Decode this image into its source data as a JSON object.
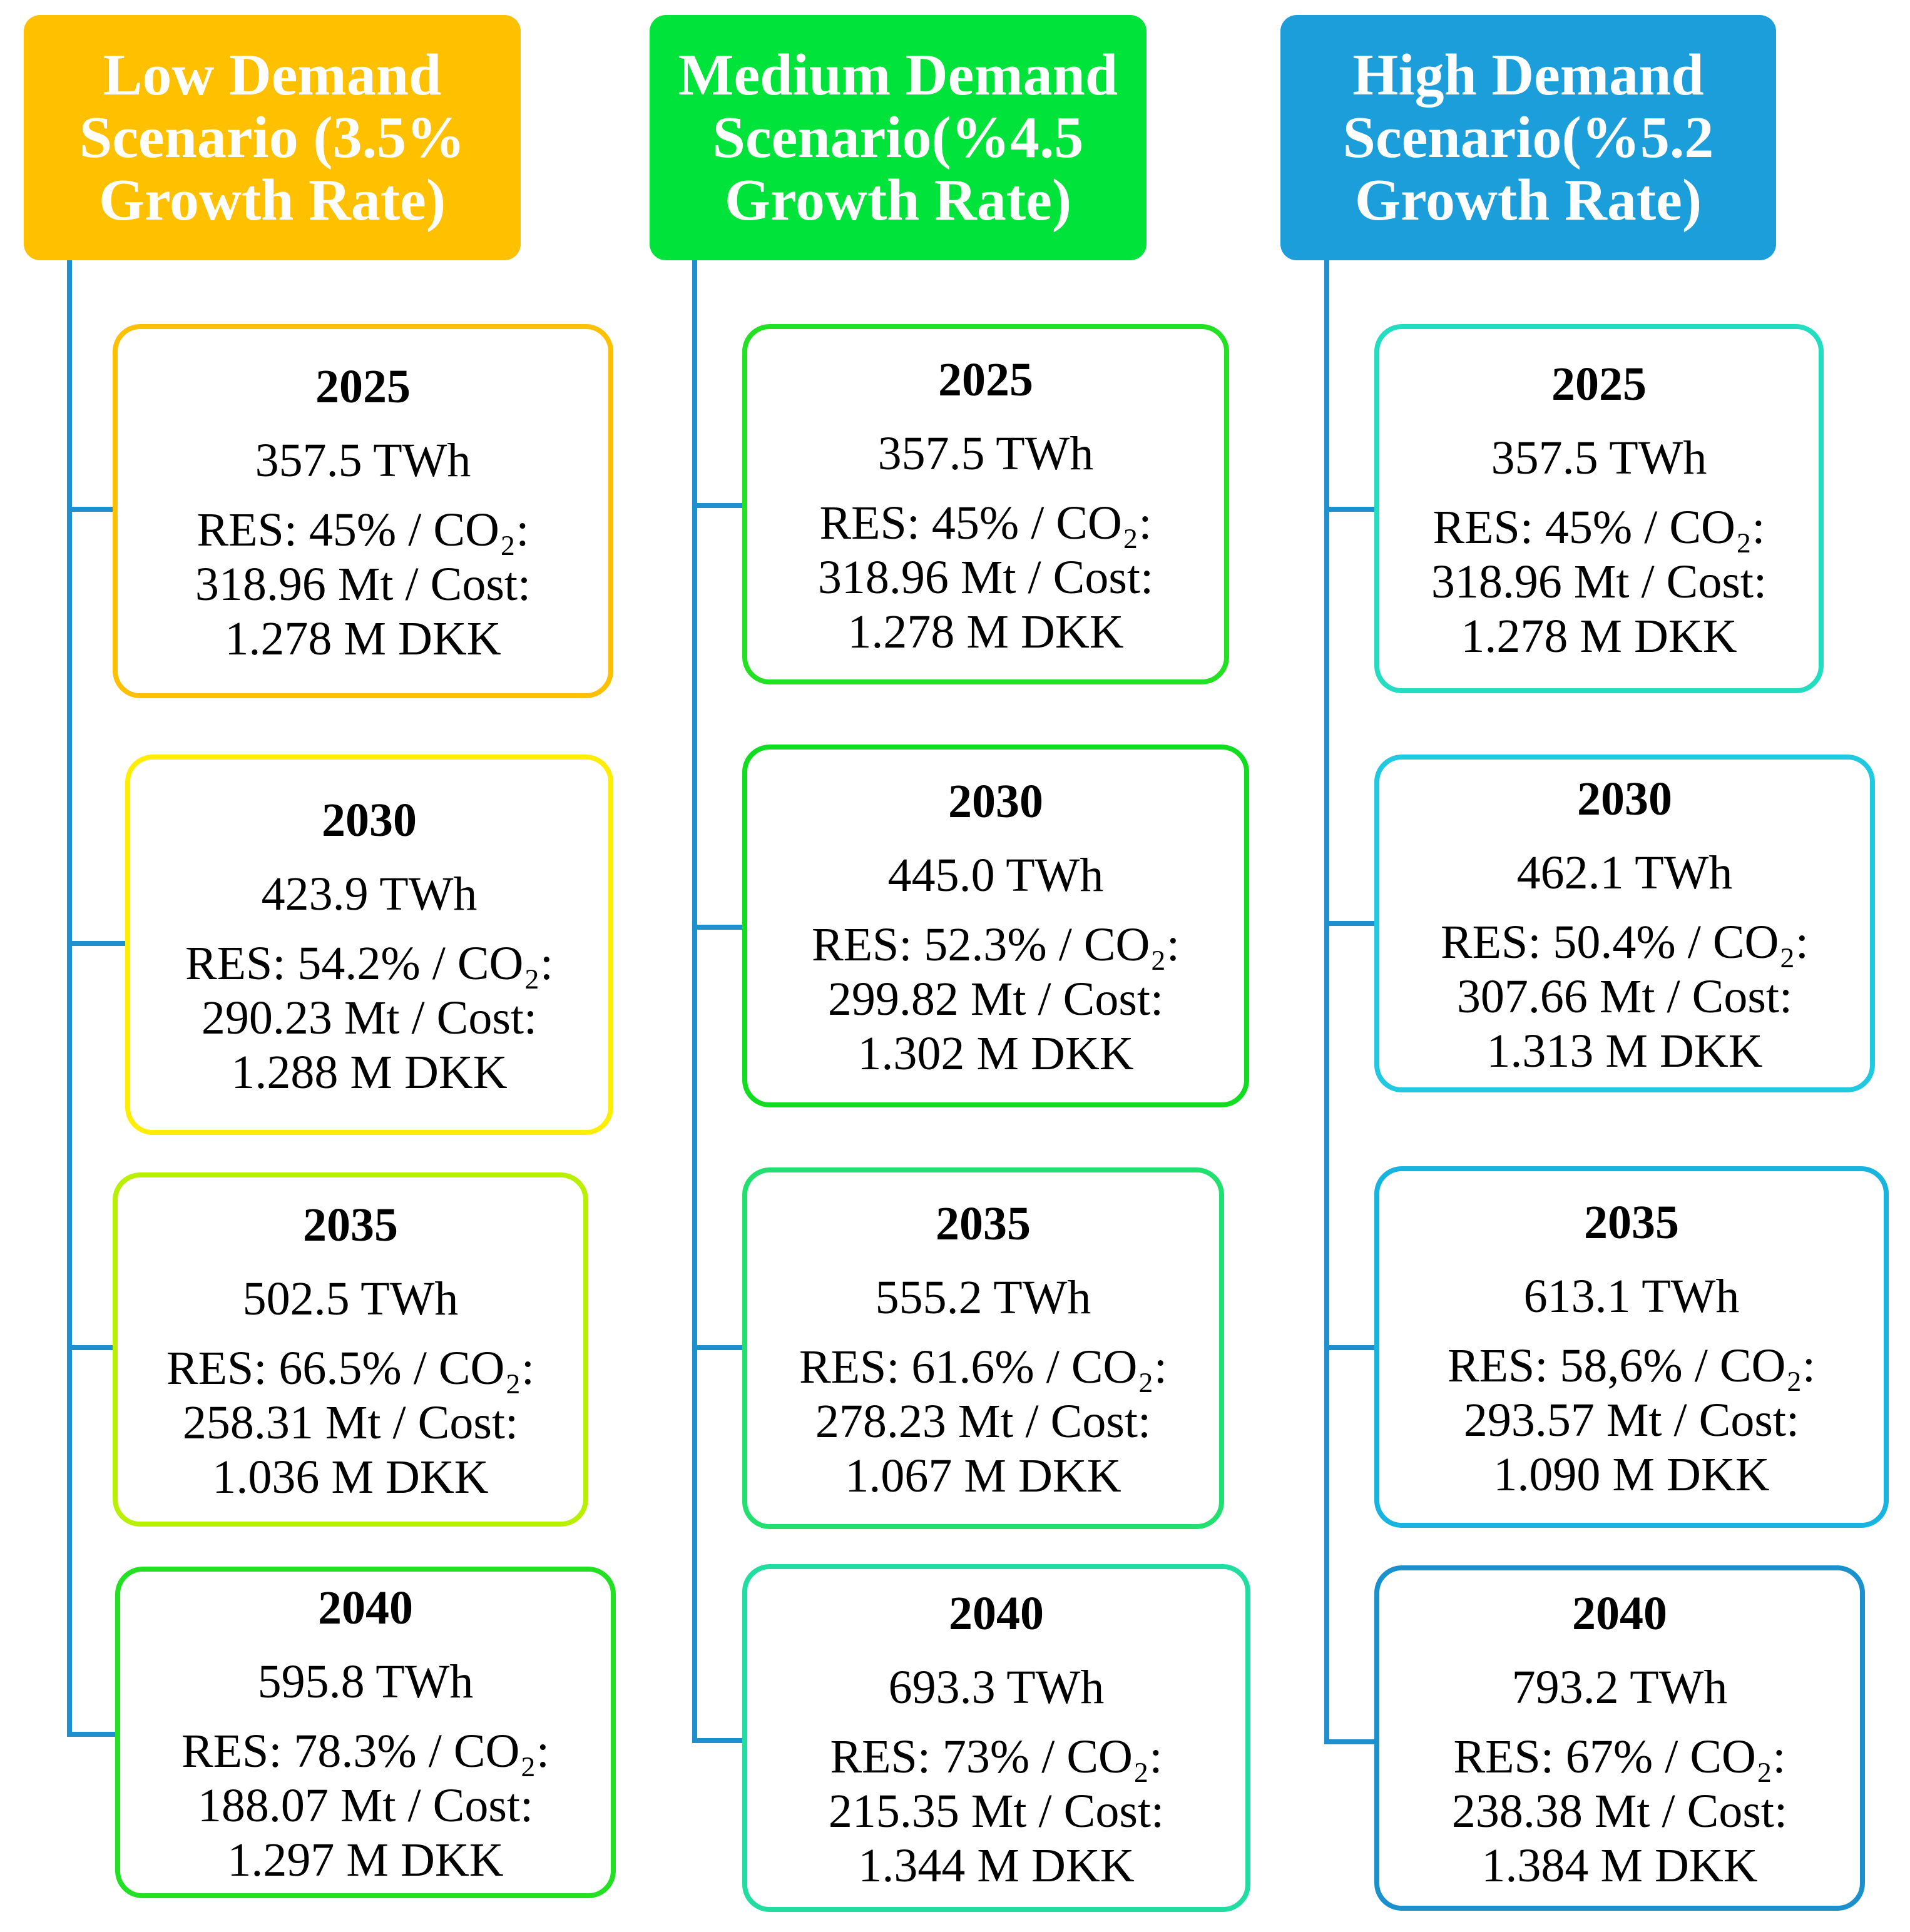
{
  "scenarios": [
    {
      "title": "Low Demand\nScenario (3.5%\nGrowth Rate)",
      "color": "#ffc000",
      "cards": [
        {
          "year": "2025",
          "twh": "357.5 TWh",
          "details": "RES: 45% / CO₂:\n318.96 Mt / Cost:\n1.278 M DKK",
          "border": "#ffc000"
        },
        {
          "year": "2030",
          "twh": "423.9 TWh",
          "details": "RES: 54.2% / CO₂:\n290.23 Mt / Cost:\n1.288 M DKK",
          "border": "#ffee00"
        },
        {
          "year": "2035",
          "twh": "502.5 TWh",
          "details": "RES: 66.5% / CO₂:\n258.31 Mt / Cost:\n1.036 M DKK",
          "border": "#b8f000"
        },
        {
          "year": "2040",
          "twh": "595.8 TWh",
          "details": "RES: 78.3% / CO₂:\n188.07 Mt / Cost:\n1.297 M DKK",
          "border": "#22e022"
        }
      ]
    },
    {
      "title": "Medium Demand\nScenario(%4.5\nGrowth Rate)",
      "color": "#00e33a",
      "cards": [
        {
          "year": "2025",
          "twh": "357.5 TWh",
          "details": "RES: 45% / CO₂:\n318.96 Mt / Cost:\n1.278 M DKK",
          "border": "#22e022"
        },
        {
          "year": "2030",
          "twh": "445.0 TWh",
          "details": "RES: 52.3% / CO₂:\n299.82 Mt / Cost:\n1.302 M DKK",
          "border": "#10dd20"
        },
        {
          "year": "2035",
          "twh": "555.2 TWh",
          "details": "RES: 61.6% / CO₂:\n278.23 Mt / Cost:\n1.067 M DKK",
          "border": "#22e070"
        },
        {
          "year": "2040",
          "twh": "693.3 TWh",
          "details": "RES: 73% / CO₂:\n215.35 Mt / Cost:\n1.344 M DKK",
          "border": "#22dda0"
        }
      ]
    },
    {
      "title": "High Demand\nScenario(%5.2\nGrowth Rate)",
      "color": "#1c9edb",
      "cards": [
        {
          "year": "2025",
          "twh": "357.5 TWh",
          "details": "RES: 45% / CO₂:\n318.96 Mt / Cost:\n1.278 M DKK",
          "border": "#22ddc0"
        },
        {
          "year": "2030",
          "twh": "462.1 TWh",
          "details": "RES: 50.4% / CO₂:\n307.66 Mt / Cost:\n1.313 M DKK",
          "border": "#20c8e0"
        },
        {
          "year": "2035",
          "twh": "613.1 TWh",
          "details": "RES: 58,6% / CO₂:\n293.57 Mt / Cost:\n1.090 M DKK",
          "border": "#18b4e0"
        },
        {
          "year": "2040",
          "twh": "793.2 TWh",
          "details": "RES: 67% / CO₂:\n238.38 Mt / Cost:\n1.384 M DKK",
          "border": "#1a90cc"
        }
      ]
    }
  ]
}
